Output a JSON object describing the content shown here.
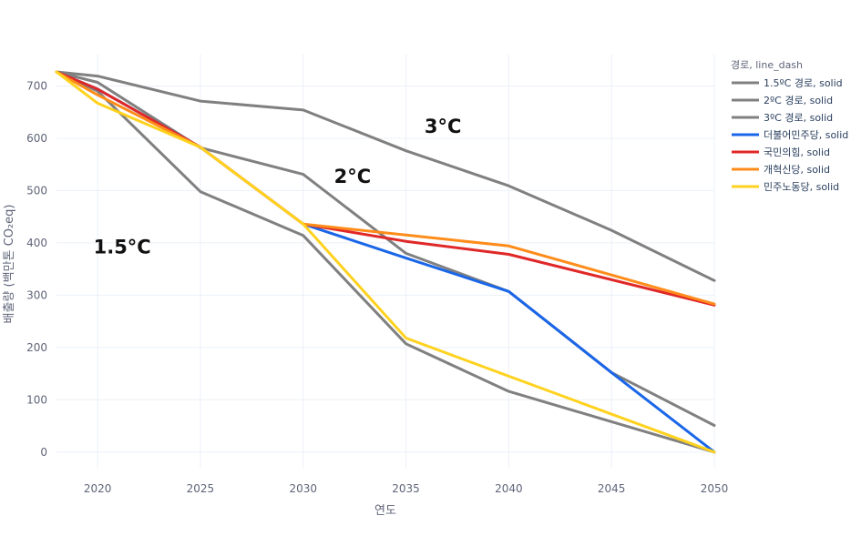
{
  "chart_data": {
    "type": "line",
    "xlabel": "연도",
    "ylabel": "배출량 (백만톤 CO₂eq)",
    "xlim": [
      2018,
      2050
    ],
    "ylim": [
      -30,
      760
    ],
    "xticks": [
      2020,
      2025,
      2030,
      2035,
      2040,
      2045,
      2050
    ],
    "yticks": [
      0,
      100,
      200,
      300,
      400,
      500,
      600,
      700
    ],
    "grid": true,
    "legend_title": "경로, line_dash",
    "legend_position": "top-right",
    "series": [
      {
        "name": "1.5ºC 경로, solid",
        "color": "#808080",
        "x": [
          2018,
          2020,
          2025,
          2030,
          2035,
          2040,
          2045,
          2050
        ],
        "y": [
          727,
          690,
          498,
          414,
          207,
          116,
          58,
          0
        ]
      },
      {
        "name": "2ºC 경로, solid",
        "color": "#808080",
        "x": [
          2018,
          2020,
          2025,
          2030,
          2035,
          2040,
          2045,
          2050
        ],
        "y": [
          727,
          707,
          582,
          531,
          380,
          307,
          152,
          51
        ]
      },
      {
        "name": "3ºC 경로, solid",
        "color": "#808080",
        "x": [
          2018,
          2020,
          2025,
          2030,
          2035,
          2040,
          2045,
          2050
        ],
        "y": [
          727,
          719,
          671,
          654,
          576,
          509,
          424,
          328
        ]
      },
      {
        "name": "더불어민주당, solid",
        "color": "#1a66e8",
        "x": [
          2018,
          2020,
          2025,
          2030,
          2035,
          2040,
          2045,
          2050
        ],
        "y": [
          727,
          694,
          583,
          436,
          371,
          307,
          152,
          0
        ]
      },
      {
        "name": "국민의힘, solid",
        "color": "#e02828",
        "x": [
          2018,
          2020,
          2025,
          2030,
          2035,
          2040,
          2050
        ],
        "y": [
          727,
          694,
          583,
          436,
          403,
          378,
          281
        ]
      },
      {
        "name": "개혁신당, solid",
        "color": "#ff8c1a",
        "x": [
          2018,
          2020,
          2025,
          2030,
          2035,
          2040,
          2050
        ],
        "y": [
          727,
          683,
          583,
          436,
          415,
          394,
          283
        ]
      },
      {
        "name": "민주노동당, solid",
        "color": "#ffd21f",
        "x": [
          2018,
          2020,
          2025,
          2030,
          2035,
          2040,
          2050
        ],
        "y": [
          727,
          667,
          583,
          436,
          218,
          145,
          0
        ]
      }
    ],
    "annotations": [
      {
        "text": "3°C",
        "x": 2035.9,
        "y": 610
      },
      {
        "text": "2°C",
        "x": 2031.5,
        "y": 515
      },
      {
        "text": "1.5°C",
        "x": 2019.8,
        "y": 380
      }
    ]
  }
}
